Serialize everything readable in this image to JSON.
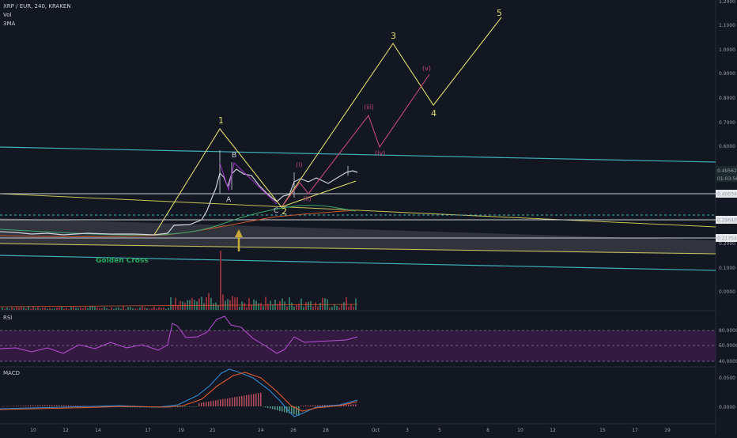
{
  "header": {
    "symbol_line": "XRP / EUR, 240, KRAKEN",
    "indicator_vol": "Vol",
    "indicator_ma": "3MA"
  },
  "price_axis": {
    "ticks": [
      "1.2000",
      "1.1000",
      "1.0000",
      "0.9000",
      "0.8000",
      "0.7000",
      "0.6000",
      "0.5000",
      "0.2000",
      "0.1000",
      "0.0000"
    ],
    "current_price_label": "0.49562",
    "countdown_label": "01:03:56",
    "level_labels": [
      "0.40034",
      "0.29640",
      "0.21754"
    ]
  },
  "time_axis": {
    "ticks": [
      "10",
      "12",
      "14",
      "17",
      "19",
      "21",
      "24",
      "26",
      "28",
      "Oct",
      "3",
      "5",
      "8",
      "10",
      "12",
      "15",
      "17",
      "19"
    ]
  },
  "annotations": {
    "wave_primary": [
      "1",
      "3",
      "4",
      "5"
    ],
    "wave_2": "2",
    "wave_sub": [
      "(i)",
      "(ii)",
      "(iii)",
      "(iv)",
      "(v)"
    ],
    "corrective": [
      "A",
      "B",
      "C"
    ],
    "golden_cross": "Golden Cross"
  },
  "rsi_pane": {
    "title": "RSI",
    "ticks": [
      "80.0000",
      "60.0000",
      "40.0000"
    ]
  },
  "macd_pane": {
    "title": "MACD",
    "ticks": [
      "0.0500",
      "0.0000"
    ]
  },
  "colors": {
    "background": "#131722",
    "wave_primary": "#e0dc6a",
    "wave_sub": "#c2467a",
    "channel_cyan": "#3fb3b8",
    "rsi_line": "#b94fd8",
    "golden_cross": "#27a85a"
  }
}
